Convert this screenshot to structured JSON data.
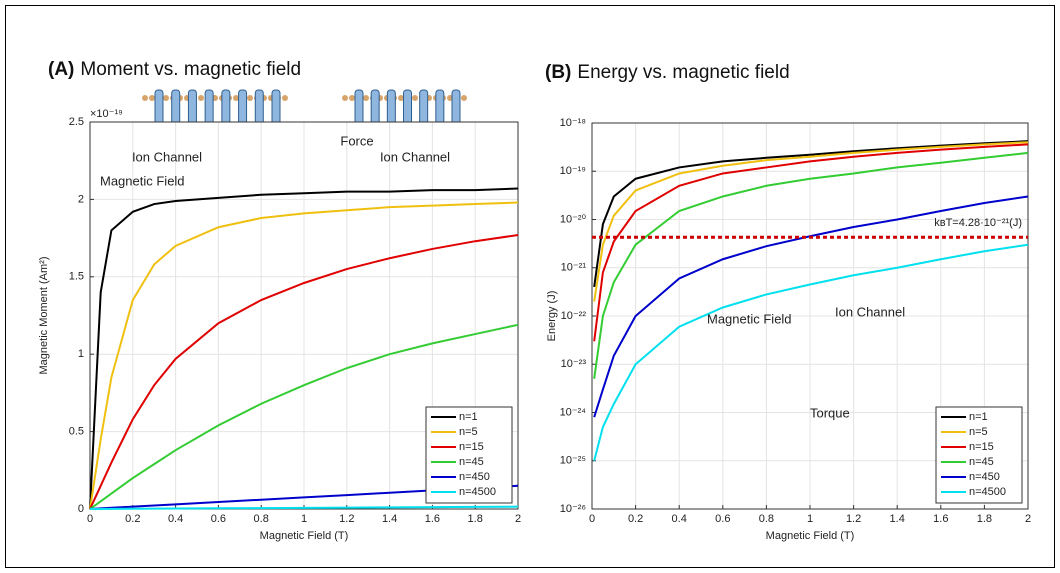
{
  "chart_data": [
    {
      "type": "line",
      "panel_label": "(A)",
      "title": "Moment vs. magnetic field",
      "x_label": "Magnetic Field (T)",
      "y_label": "Magnetic Moment (Am²)",
      "y_scale_label": "×10⁻¹⁹",
      "x": [
        0,
        0.05,
        0.1,
        0.2,
        0.3,
        0.4,
        0.6,
        0.8,
        1.0,
        1.2,
        1.4,
        1.6,
        1.8,
        2.0
      ],
      "series": [
        {
          "name": "n=1",
          "color": "#000000",
          "values": [
            0,
            1.4,
            1.8,
            1.92,
            1.97,
            1.99,
            2.01,
            2.03,
            2.04,
            2.05,
            2.05,
            2.06,
            2.06,
            2.07
          ]
        },
        {
          "name": "n=5",
          "color": "#f0c010",
          "values": [
            0,
            0.45,
            0.85,
            1.35,
            1.58,
            1.7,
            1.82,
            1.88,
            1.91,
            1.93,
            1.95,
            1.96,
            1.97,
            1.98
          ]
        },
        {
          "name": "n=15",
          "color": "#e00000",
          "values": [
            0,
            0.15,
            0.3,
            0.58,
            0.8,
            0.97,
            1.2,
            1.35,
            1.46,
            1.55,
            1.62,
            1.68,
            1.73,
            1.77
          ]
        },
        {
          "name": "n=45",
          "color": "#33cc33",
          "values": [
            0,
            0.05,
            0.1,
            0.2,
            0.29,
            0.38,
            0.54,
            0.68,
            0.8,
            0.91,
            1.0,
            1.07,
            1.13,
            1.19
          ]
        },
        {
          "name": "n=450",
          "color": "#0000cc",
          "values": [
            0,
            0.004,
            0.008,
            0.015,
            0.023,
            0.03,
            0.045,
            0.06,
            0.075,
            0.09,
            0.105,
            0.12,
            0.135,
            0.15
          ]
        },
        {
          "name": "n=4500",
          "color": "#00e0ee",
          "values": [
            0,
            0.0004,
            0.0008,
            0.0015,
            0.0023,
            0.003,
            0.0045,
            0.006,
            0.0075,
            0.009,
            0.0105,
            0.012,
            0.0135,
            0.015
          ]
        }
      ],
      "xlim": [
        0,
        2
      ],
      "xticks": [
        0,
        0.2,
        0.4,
        0.6,
        0.8,
        1,
        1.2,
        1.4,
        1.6,
        1.8,
        2
      ],
      "ylim": [
        0,
        2.5
      ],
      "yticks": [
        0,
        0.5,
        1,
        1.5,
        2,
        2.5
      ],
      "grid": true,
      "legend": "lower right",
      "annotations": [
        {
          "text": "Force",
          "color": "#111111"
        },
        {
          "text": "Ion Channel",
          "color": "#111111"
        },
        {
          "text": "Ion Channel",
          "color": "#111111"
        },
        {
          "text": "Magnetic Field",
          "color": "#cc0000"
        }
      ]
    },
    {
      "type": "line",
      "panel_label": "(B)",
      "title": "Energy vs. magnetic field",
      "x_label": "Magnetic Field (T)",
      "y_label": "Energy (J)",
      "log_y": true,
      "x": [
        0.01,
        0.05,
        0.1,
        0.2,
        0.4,
        0.6,
        0.8,
        1.0,
        1.2,
        1.4,
        1.6,
        1.8,
        2.0
      ],
      "series": [
        {
          "name": "n=1",
          "color": "#000000",
          "values": [
            4e-22,
            8e-21,
            3e-20,
            7e-20,
            1.2e-19,
            1.6e-19,
            1.9e-19,
            2.2e-19,
            2.6e-19,
            3e-19,
            3.4e-19,
            3.8e-19,
            4.2e-19
          ]
        },
        {
          "name": "n=5",
          "color": "#f0c010",
          "values": [
            2e-22,
            3e-21,
            1.2e-20,
            4e-20,
            9e-20,
            1.3e-19,
            1.7e-19,
            2e-19,
            2.4e-19,
            2.8e-19,
            3.2e-19,
            3.6e-19,
            4e-19
          ]
        },
        {
          "name": "n=15",
          "color": "#e00000",
          "values": [
            3e-23,
            8e-22,
            3.5e-21,
            1.5e-20,
            5e-20,
            9e-20,
            1.2e-19,
            1.6e-19,
            2e-19,
            2.4e-19,
            2.8e-19,
            3.2e-19,
            3.6e-19
          ]
        },
        {
          "name": "n=45",
          "color": "#33cc33",
          "values": [
            5e-24,
            1e-22,
            5e-22,
            3e-21,
            1.5e-20,
            3e-20,
            5e-20,
            7e-20,
            9e-20,
            1.2e-19,
            1.5e-19,
            1.9e-19,
            2.4e-19
          ]
        },
        {
          "name": "n=450",
          "color": "#0000cc",
          "values": [
            8e-25,
            3e-24,
            1.5e-23,
            1e-22,
            6e-22,
            1.5e-21,
            2.8e-21,
            4.5e-21,
            7e-21,
            1e-20,
            1.5e-20,
            2.2e-20,
            3e-20
          ]
        },
        {
          "name": "n=4500",
          "color": "#00e0ee",
          "values": [
            1e-25,
            5e-25,
            1.5e-24,
            1e-23,
            6e-23,
            1.5e-22,
            2.8e-22,
            4.5e-22,
            7e-22,
            1e-21,
            1.5e-21,
            2.2e-21,
            3e-21
          ]
        }
      ],
      "xlim": [
        0,
        2
      ],
      "xticks": [
        0,
        0.2,
        0.4,
        0.6,
        0.8,
        1,
        1.2,
        1.4,
        1.6,
        1.8,
        2
      ],
      "ylim": [
        1e-26,
        1e-18
      ],
      "yticks": [
        {
          "value": 1e-26,
          "label": "10⁻²⁶"
        },
        {
          "value": 1e-25,
          "label": "10⁻²⁵"
        },
        {
          "value": 1e-24,
          "label": "10⁻²⁴"
        },
        {
          "value": 1e-23,
          "label": "10⁻²³"
        },
        {
          "value": 1e-22,
          "label": "10⁻²²"
        },
        {
          "value": 1e-21,
          "label": "10⁻²¹"
        },
        {
          "value": 1e-20,
          "label": "10⁻²⁰"
        },
        {
          "value": 1e-19,
          "label": "10⁻¹⁹"
        },
        {
          "value": 1e-18,
          "label": "10⁻¹⁸"
        }
      ],
      "grid": true,
      "legend": "lower right",
      "reference_line": {
        "value": 4.28e-21,
        "label": "kʙT=4.28·10⁻²¹(J)",
        "color": "#cc0000"
      },
      "annotations": [
        {
          "text": "Magnetic Field",
          "color": "#cc0000"
        },
        {
          "text": "Ion Channel",
          "color": "#111111"
        },
        {
          "text": "Torque",
          "color": "#111111"
        }
      ]
    }
  ]
}
